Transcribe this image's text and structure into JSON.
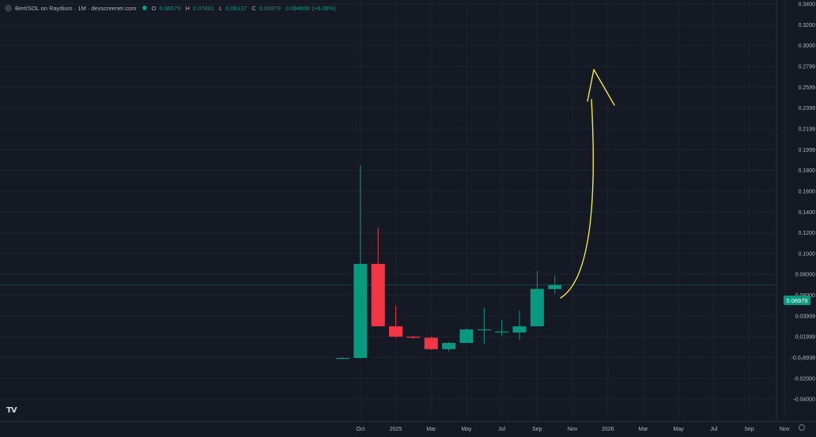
{
  "header": {
    "title": "Bert/SOL on Raydium · 1M · dexscreener.com",
    "ohlc": [
      {
        "label": "O",
        "value": "0.06579"
      },
      {
        "label": "H",
        "value": "0.07891"
      },
      {
        "label": "L",
        "value": "0.06137"
      },
      {
        "label": "C",
        "value": "0.06979"
      },
      {
        "label": "",
        "value": "0.004000 (+6.08%)"
      }
    ]
  },
  "colors": {
    "background": "#151924",
    "up": "#089981",
    "down": "#f23645",
    "annotation": "#f5ea3d",
    "axis_text": "#b2b5be",
    "grid": "#1e222d"
  },
  "chart_data": {
    "type": "candlestick",
    "x_tick_labels": [
      "Oct",
      "2025",
      "Mar",
      "May",
      "Jul",
      "Sep",
      "Nov",
      "2026",
      "Mar",
      "May",
      "Jul",
      "Sep",
      "Nov"
    ],
    "y_tick_labels": [
      "0.3400",
      "0.3200",
      "0.3000",
      "0.2799",
      "0.2599",
      "0.2399",
      "0.2199",
      "0.1999",
      "0.1800",
      "0.1600",
      "0.1400",
      "0.1200",
      "0.1000",
      "0.08000",
      "0.06000",
      "0.03999",
      "0.01999",
      "-0.0₅6938",
      "-0.02000",
      "-0.04000"
    ],
    "ylim": [
      -0.04,
      0.34
    ],
    "current_price": "0.06979",
    "candles": [
      {
        "month": "2024-09",
        "open": -0.001,
        "high": 0.0005,
        "low": -0.0015,
        "close": -0.0005
      },
      {
        "month": "2024-10",
        "open": -0.0005,
        "high": 0.185,
        "low": -0.001,
        "close": 0.09
      },
      {
        "month": "2024-11",
        "open": 0.09,
        "high": 0.125,
        "low": 0.03,
        "close": 0.03
      },
      {
        "month": "2024-12",
        "open": 0.03,
        "high": 0.05,
        "low": 0.019,
        "close": 0.02
      },
      {
        "month": "2025-01",
        "open": 0.02,
        "high": 0.021,
        "low": 0.018,
        "close": 0.019
      },
      {
        "month": "2025-02",
        "open": 0.019,
        "high": 0.02,
        "low": 0.007,
        "close": 0.008
      },
      {
        "month": "2025-03",
        "open": 0.008,
        "high": 0.015,
        "low": 0.006,
        "close": 0.014
      },
      {
        "month": "2025-04",
        "open": 0.014,
        "high": 0.028,
        "low": 0.014,
        "close": 0.027
      },
      {
        "month": "2025-05",
        "open": 0.027,
        "high": 0.048,
        "low": 0.013,
        "close": 0.027
      },
      {
        "month": "2025-06",
        "open": 0.025,
        "high": 0.036,
        "low": 0.021,
        "close": 0.025
      },
      {
        "month": "2025-07",
        "open": 0.024,
        "high": 0.045,
        "low": 0.017,
        "close": 0.03
      },
      {
        "month": "2025-08",
        "open": 0.03,
        "high": 0.083,
        "low": 0.03,
        "close": 0.066
      },
      {
        "month": "2025-09",
        "open": 0.06579,
        "high": 0.07891,
        "low": 0.06137,
        "close": 0.06979
      }
    ]
  }
}
